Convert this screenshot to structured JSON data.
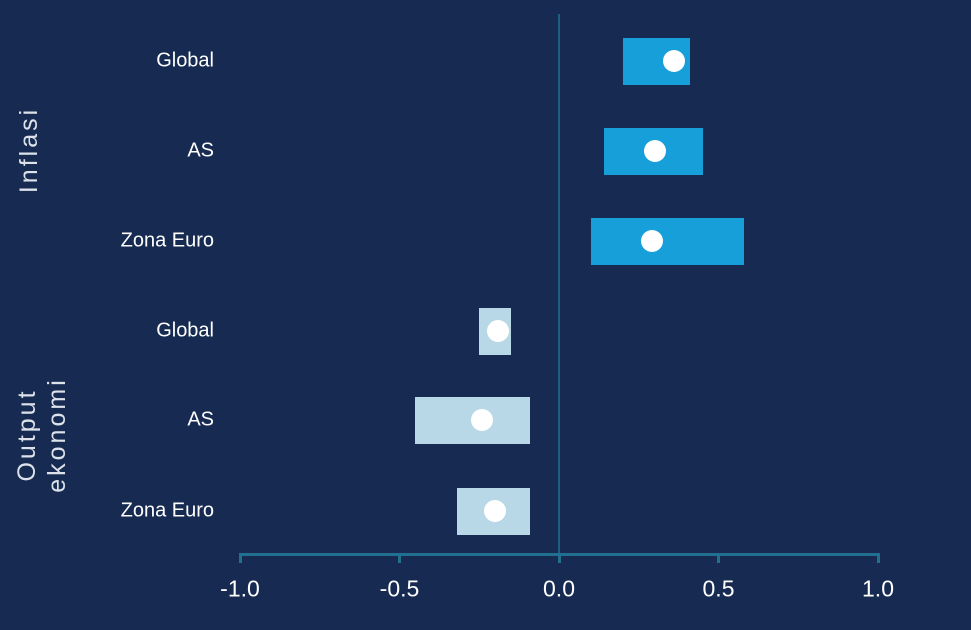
{
  "chart_data": {
    "type": "range_bar",
    "orientation": "horizontal",
    "xlim": [
      -1.0,
      1.0
    ],
    "xticks": [
      -1.0,
      -0.5,
      0.0,
      0.5,
      1.0
    ],
    "xtick_labels": [
      "-1.0",
      "-0.5",
      "0.0",
      "0.5",
      "1.0"
    ],
    "zero_line": true,
    "groups": [
      {
        "label": "Inflasi",
        "label_lines": [
          "Inflasi"
        ],
        "bar_color": "#169fd8",
        "rows": [
          {
            "label": "Global",
            "low": 0.2,
            "high": 0.41,
            "point": 0.36
          },
          {
            "label": "AS",
            "low": 0.14,
            "high": 0.45,
            "point": 0.3
          },
          {
            "label": "Zona Euro",
            "low": 0.1,
            "high": 0.58,
            "point": 0.29
          }
        ]
      },
      {
        "label": "Output ekonomi",
        "label_lines": [
          "Output",
          "ekonomi"
        ],
        "bar_color": "#b9d8e7",
        "rows": [
          {
            "label": "Global",
            "low": -0.25,
            "high": -0.15,
            "point": -0.19
          },
          {
            "label": "AS",
            "low": -0.45,
            "high": -0.09,
            "point": -0.24
          },
          {
            "label": "Zona Euro",
            "low": -0.32,
            "high": -0.09,
            "point": -0.2
          }
        ]
      }
    ],
    "marker": {
      "shape": "circle",
      "color": "#ffffff"
    }
  },
  "colors": {
    "background": "#172b52",
    "axis": "#21708f",
    "zero_line": "#1b5f84",
    "tick_label": "#ffffff",
    "row_label": "#ffffff",
    "group_label": "#dde2ea",
    "bar_inflation": "#169fd8",
    "bar_output": "#b9d8e7",
    "marker": "#ffffff"
  }
}
